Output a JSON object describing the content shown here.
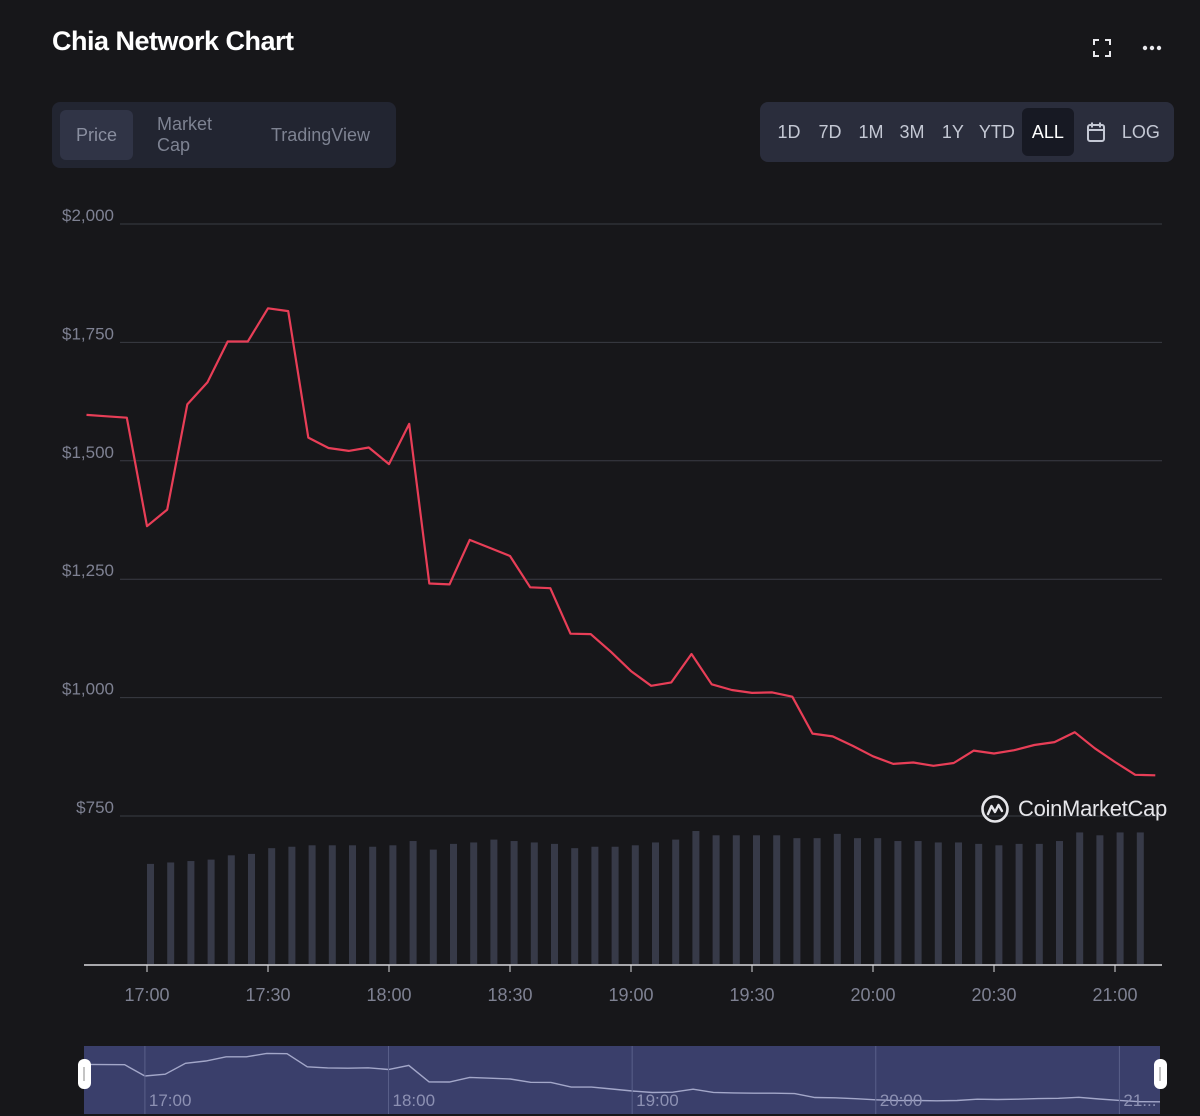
{
  "title": "Chia Network Chart",
  "tabs": [
    "Price",
    "Market Cap",
    "TradingView"
  ],
  "ranges": [
    "1D",
    "7D",
    "1M",
    "3M",
    "1Y",
    "YTD",
    "ALL",
    "LOG"
  ],
  "watermark": "CoinMarketCap",
  "icons": {
    "fullscreen": "fullscreen-icon",
    "more": "more-icon",
    "calendar": "calendar-icon",
    "logo": "coinmarketcap-logo-icon"
  },
  "colors": {
    "price_line": "#e83e57",
    "grid": "#3a3c44",
    "volume_bar": "#373a48",
    "navigator_bg": "#3a3f6b",
    "navigator_line": "#a3a7c9",
    "axis_text": "#7e8192"
  },
  "chart_data": {
    "type": "line",
    "title": "",
    "xlabel": "",
    "ylabel": "",
    "ylim": [
      750,
      2000
    ],
    "y_ticks": [
      "$2,000",
      "$1,750",
      "$1,500",
      "$1,250",
      "$1,000",
      "$750"
    ],
    "y_tick_values": [
      2000,
      1750,
      1500,
      1250,
      1000,
      750
    ],
    "x_ticks": [
      "17:00",
      "17:30",
      "18:00",
      "18:30",
      "19:00",
      "19:30",
      "20:00",
      "20:30",
      "21:00"
    ],
    "navigator_ticks": [
      "17:00",
      "18:00",
      "19:00",
      "20:00",
      "21..."
    ],
    "x_minutes": [
      -15,
      -10,
      -5,
      0,
      5,
      10,
      15,
      20,
      25,
      30,
      35,
      40,
      45,
      50,
      55,
      60,
      65,
      70,
      75,
      80,
      85,
      90,
      95,
      100,
      105,
      110,
      115,
      120,
      125,
      130,
      135,
      140,
      145,
      150,
      155,
      160,
      165,
      170,
      175,
      180,
      185,
      190,
      195,
      200,
      205,
      210,
      215,
      220,
      225,
      230,
      235,
      240,
      245,
      250
    ],
    "series": [
      {
        "values": [
          1597,
          1594,
          1591,
          1362,
          1397,
          1619,
          1666,
          1752,
          1752,
          1822,
          1816,
          1549,
          1527,
          1521,
          1528,
          1493,
          1578,
          1241,
          1239,
          1333,
          1316,
          1299,
          1233,
          1231,
          1135,
          1134,
          1097,
          1056,
          1025,
          1032,
          1092,
          1028,
          1016,
          1010,
          1011,
          1002,
          924,
          918,
          898,
          876,
          860,
          863,
          856,
          862,
          888,
          882,
          889,
          900,
          906,
          927,
          893,
          864,
          837,
          836
        ]
      }
    ],
    "volume_relative": [
      0.7,
      0.71,
      0.72,
      0.73,
      0.76,
      0.77,
      0.81,
      0.82,
      0.83,
      0.83,
      0.83,
      0.82,
      0.83,
      0.86,
      0.8,
      0.84,
      0.85,
      0.87,
      0.86,
      0.85,
      0.84,
      0.81,
      0.82,
      0.82,
      0.83,
      0.85,
      0.87,
      0.93,
      0.9,
      0.9,
      0.9,
      0.9,
      0.88,
      0.88,
      0.91,
      0.88,
      0.88,
      0.86,
      0.86,
      0.85,
      0.85,
      0.84,
      0.83,
      0.84,
      0.84,
      0.86,
      0.92,
      0.9,
      0.92,
      0.92
    ]
  }
}
